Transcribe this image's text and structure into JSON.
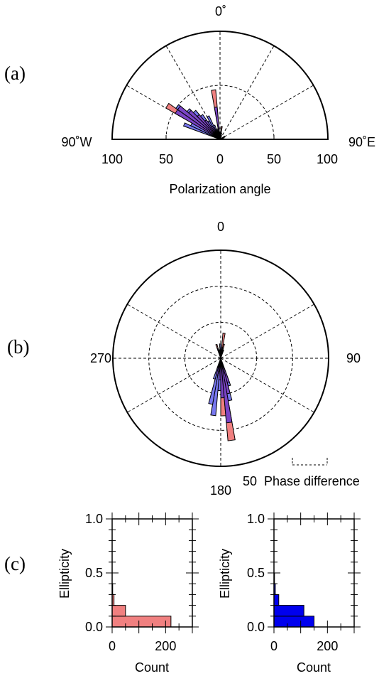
{
  "colors": {
    "red": "#f08080",
    "blue": "#7878f0",
    "overlap": "#7a44c6",
    "solid_blue": "#0000ee"
  },
  "panels": {
    "a": {
      "letter": "(a)"
    },
    "b": {
      "letter": "(b)"
    },
    "c": {
      "letter": "(c)"
    }
  },
  "chart_data": [
    {
      "id": "a",
      "type": "polar-histogram",
      "span": "half",
      "angle_label_top": "0˚",
      "angle_label_left": "90˚W",
      "angle_label_right": "90˚E",
      "radial_ticks": [
        "100",
        "50",
        "0",
        "50",
        "100"
      ],
      "xlabel": "Polarization angle",
      "rmax": 100,
      "bin_width_deg": 5,
      "series": [
        {
          "color": "red",
          "bins": [
            {
              "angle": -57.5,
              "value": 58
            },
            {
              "angle": -52.5,
              "value": 48
            },
            {
              "angle": -47.5,
              "value": 38
            },
            {
              "angle": -42.5,
              "value": 30
            },
            {
              "angle": -37.5,
              "value": 22
            },
            {
              "angle": -32.5,
              "value": 14
            },
            {
              "angle": -27.5,
              "value": 9
            },
            {
              "angle": -22.5,
              "value": 6
            },
            {
              "angle": -17.5,
              "value": 4
            },
            {
              "angle": -12.5,
              "value": 3
            },
            {
              "angle": -7.5,
              "value": 46
            },
            {
              "angle": -2.5,
              "value": 6
            },
            {
              "angle": 2.5,
              "value": 6
            },
            {
              "angle": 7.5,
              "value": 12
            },
            {
              "angle": 12.5,
              "value": 6
            },
            {
              "angle": 17.5,
              "value": 4
            },
            {
              "angle": 22.5,
              "value": 3
            }
          ]
        },
        {
          "color": "blue",
          "bins": [
            {
              "angle": -67.5,
              "value": 36
            },
            {
              "angle": -62.5,
              "value": 30
            },
            {
              "angle": -57.5,
              "value": 48
            },
            {
              "angle": -52.5,
              "value": 50
            },
            {
              "angle": -47.5,
              "value": 40
            },
            {
              "angle": -42.5,
              "value": 35
            },
            {
              "angle": -37.5,
              "value": 28
            },
            {
              "angle": -32.5,
              "value": 20
            },
            {
              "angle": -27.5,
              "value": 24
            },
            {
              "angle": -22.5,
              "value": 14
            },
            {
              "angle": -17.5,
              "value": 10
            },
            {
              "angle": -12.5,
              "value": 8
            },
            {
              "angle": -7.5,
              "value": 30
            },
            {
              "angle": -2.5,
              "value": 6
            },
            {
              "angle": 2.5,
              "value": 3
            },
            {
              "angle": 7.5,
              "value": 6
            },
            {
              "angle": 12.5,
              "value": 3
            },
            {
              "angle": 57.5,
              "value": 5
            },
            {
              "angle": 62.5,
              "value": 5
            },
            {
              "angle": 67.5,
              "value": 4
            }
          ]
        }
      ]
    },
    {
      "id": "b",
      "type": "polar-histogram",
      "span": "full",
      "angle_label_top": "0",
      "angle_label_right": "90",
      "angle_label_bottom": "180",
      "angle_label_left": "270",
      "xlabel": "Phase difference",
      "scale_label": "50",
      "rmax": 150,
      "bin_width_deg": 5,
      "series": [
        {
          "color": "red",
          "bins": [
            {
              "angle": -17.5,
              "value": 20
            },
            {
              "angle": -12.5,
              "value": 12
            },
            {
              "angle": -7.5,
              "value": 8
            },
            {
              "angle": 7.5,
              "value": 35
            },
            {
              "angle": 12.5,
              "value": 20
            },
            {
              "angle": 17.5,
              "value": 12
            },
            {
              "angle": 162.5,
              "value": 35
            },
            {
              "angle": 167.5,
              "value": 50
            },
            {
              "angle": 172.5,
              "value": 115
            },
            {
              "angle": 177.5,
              "value": 80
            },
            {
              "angle": 182.5,
              "value": 30
            },
            {
              "angle": 187.5,
              "value": 18
            },
            {
              "angle": 192.5,
              "value": 24
            },
            {
              "angle": 197.5,
              "value": 14
            }
          ]
        },
        {
          "color": "blue",
          "bins": [
            {
              "angle": -17.5,
              "value": 14
            },
            {
              "angle": -12.5,
              "value": 12
            },
            {
              "angle": -7.5,
              "value": 8
            },
            {
              "angle": -2.5,
              "value": 20
            },
            {
              "angle": 7.5,
              "value": 15
            },
            {
              "angle": 12.5,
              "value": 10
            },
            {
              "angle": 162.5,
              "value": 40
            },
            {
              "angle": 167.5,
              "value": 60
            },
            {
              "angle": 172.5,
              "value": 90
            },
            {
              "angle": 177.5,
              "value": 55
            },
            {
              "angle": 182.5,
              "value": 45
            },
            {
              "angle": 187.5,
              "value": 80
            },
            {
              "angle": 192.5,
              "value": 65
            },
            {
              "angle": 197.5,
              "value": 30
            }
          ]
        }
      ]
    },
    {
      "id": "c-left",
      "type": "bar-horizontal",
      "ylabel": "Ellipticity",
      "xlabel": "Count",
      "xlim": [
        0,
        300
      ],
      "ylim": [
        0,
        1
      ],
      "xticks": [
        "0",
        "200"
      ],
      "yticks": [
        "0.0",
        "0.5",
        "1.0"
      ],
      "bin_width": 0.1,
      "color": "red",
      "bins": [
        {
          "y": 0.05,
          "value": 220
        },
        {
          "y": 0.15,
          "value": 50
        },
        {
          "y": 0.25,
          "value": 7
        },
        {
          "y": 0.35,
          "value": 2
        }
      ]
    },
    {
      "id": "c-right",
      "type": "bar-horizontal",
      "ylabel": "Ellipticity",
      "xlabel": "Count",
      "xlim": [
        0,
        300
      ],
      "ylim": [
        0,
        1
      ],
      "xticks": [
        "0",
        "200"
      ],
      "yticks": [
        "0.0",
        "0.5",
        "1.0"
      ],
      "bin_width": 0.1,
      "color": "solid_blue",
      "bins": [
        {
          "y": 0.05,
          "value": 150
        },
        {
          "y": 0.15,
          "value": 112
        },
        {
          "y": 0.25,
          "value": 18
        },
        {
          "y": 0.35,
          "value": 5
        },
        {
          "y": 0.45,
          "value": 2
        }
      ]
    }
  ]
}
